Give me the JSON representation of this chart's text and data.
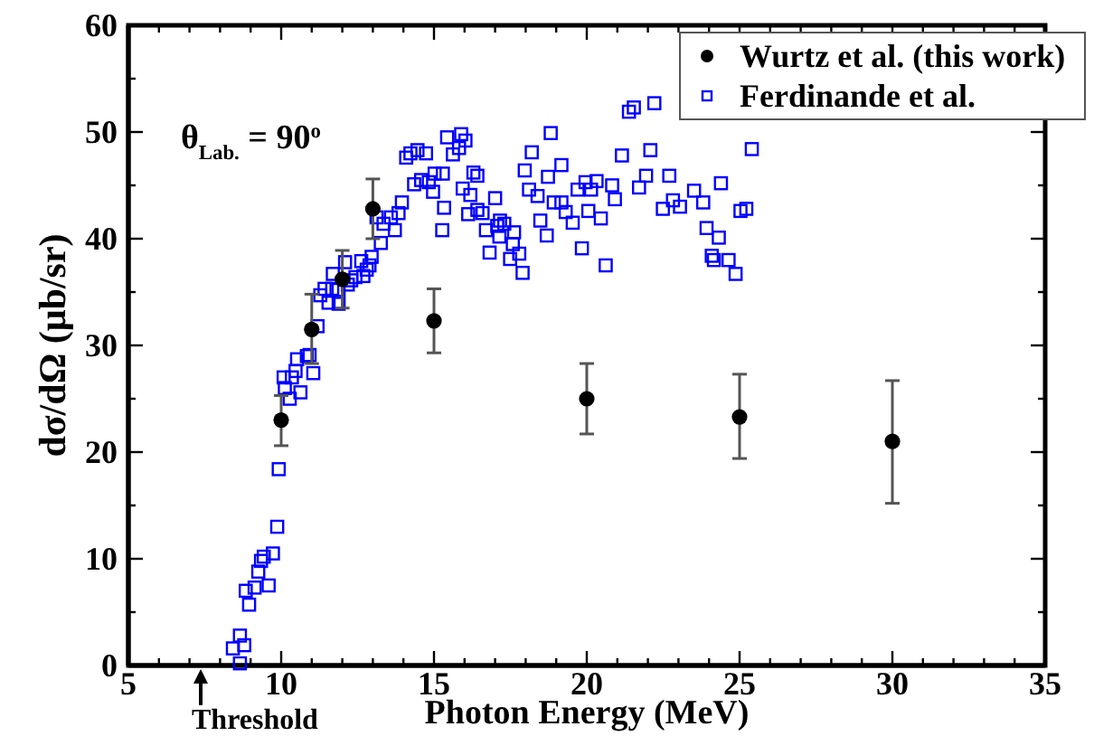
{
  "chart_data": {
    "type": "scatter",
    "xlabel": "Photon Energy (MeV)",
    "ylabel": "dσ/dΩ (μb/sr)",
    "xlim": [
      5,
      35
    ],
    "ylim": [
      0,
      60
    ],
    "xticks": [
      5,
      {
        "value": 6,
        "label": null
      },
      {
        "value": 7,
        "label": null
      },
      {
        "value": 8,
        "label": null
      },
      {
        "value": 9,
        "label": null
      },
      10,
      {
        "value": 11,
        "label": null
      },
      {
        "value": 12,
        "label": null
      },
      {
        "value": 13,
        "label": null
      },
      {
        "value": 14,
        "label": null
      },
      15,
      {
        "value": 16,
        "label": null
      },
      {
        "value": 17,
        "label": null
      },
      {
        "value": 18,
        "label": null
      },
      {
        "value": 19,
        "label": null
      },
      20,
      {
        "value": 21,
        "label": null
      },
      {
        "value": 22,
        "label": null
      },
      {
        "value": 23,
        "label": null
      },
      {
        "value": 24,
        "label": null
      },
      25,
      {
        "value": 26,
        "label": null
      },
      {
        "value": 27,
        "label": null
      },
      {
        "value": 28,
        "label": null
      },
      {
        "value": 29,
        "label": null
      },
      30,
      {
        "value": 31,
        "label": null
      },
      {
        "value": 32,
        "label": null
      },
      {
        "value": 33,
        "label": null
      },
      {
        "value": 34,
        "label": null
      },
      35
    ],
    "yticks": [
      0,
      {
        "value": 5,
        "label": null
      },
      10,
      {
        "value": 15,
        "label": null
      },
      20,
      {
        "value": 25,
        "label": null
      },
      30,
      {
        "value": 35,
        "label": null
      },
      40,
      {
        "value": 45,
        "label": null
      },
      50,
      {
        "value": 55,
        "label": null
      },
      60
    ],
    "grid": false,
    "legend": "top right",
    "annotations": [
      "θ$_{Lab.}$ = 90$^{o}$",
      "Threshold"
    ],
    "series": [
      {
        "name": "Wurtz et al. (this work)",
        "color": "#000000",
        "marker": "circle",
        "x": [
          10,
          11,
          12,
          13,
          15,
          20,
          25,
          30
        ],
        "values": [
          23,
          31.5,
          36.2,
          42.8,
          32.3,
          25,
          23.3,
          21
        ],
        "errors": [
          [
            20.6,
            25.3
          ],
          [
            28.3,
            34.8
          ],
          [
            33.5,
            38.9
          ],
          [
            40,
            45.6
          ],
          [
            29.3,
            35.3
          ],
          [
            21.7,
            28.3
          ],
          [
            19.4,
            27.3
          ],
          [
            15.2,
            26.7
          ]
        ]
      },
      {
        "name": "Ferdinande et al.",
        "color": "#0000ff",
        "marker": "square",
        "x": [
          8.42,
          8.65,
          8.65,
          8.79,
          8.84,
          8.95,
          9.13,
          9.25,
          9.34,
          9.43,
          9.59,
          9.73,
          9.87,
          9.92,
          10.08,
          10.12,
          10.28,
          10.35,
          10.47,
          10.52,
          10.63,
          10.84,
          10.93,
          11.05,
          11.19,
          11.28,
          11.42,
          11.55,
          11.67,
          11.69,
          11.88,
          11.88,
          12.09,
          12.18,
          12.29,
          12.43,
          12.62,
          12.69,
          12.8,
          12.89,
          12.96,
          13.12,
          13.26,
          13.35,
          13.59,
          13.72,
          13.84,
          13.95,
          14.09,
          14.23,
          14.35,
          14.46,
          14.58,
          14.74,
          14.83,
          14.97,
          15.02,
          15.27,
          15.29,
          15.33,
          15.43,
          15.62,
          15.82,
          15.89,
          16.03,
          15.94,
          16.12,
          16.19,
          16.29,
          16.42,
          16.42,
          16.59,
          16.7,
          16.82,
          17,
          17.07,
          17.16,
          17.14,
          17.3,
          17.49,
          17.58,
          17.62,
          17.79,
          17.9,
          17.97,
          18.11,
          18.2,
          18.39,
          18.48,
          18.69,
          18.73,
          18.82,
          18.92,
          19.17,
          19.17,
          19.31,
          19.54,
          19.7,
          19.84,
          19.96,
          20.05,
          20.14,
          20.32,
          20.46,
          20.62,
          20.83,
          20.92,
          21.15,
          21.38,
          21.54,
          21.71,
          21.94,
          22.08,
          22.21,
          22.49,
          22.7,
          22.82,
          23.05,
          23.51,
          23.81,
          23.92,
          24.09,
          24.16,
          24.32,
          24.39,
          24.64,
          24.87,
          25.03,
          25.22,
          25.4
        ],
        "values": [
          1.6,
          2.8,
          0.2,
          1.9,
          7,
          5.7,
          7.3,
          8.8,
          9.8,
          10.2,
          7.5,
          10.5,
          13,
          18.4,
          27,
          26,
          25,
          27,
          27.6,
          28.7,
          25.6,
          29,
          29.1,
          27.4,
          31.8,
          34.7,
          35.3,
          34,
          35.3,
          36.7,
          35.2,
          33.9,
          37.8,
          35.7,
          36.1,
          36.4,
          37.9,
          36.5,
          37.1,
          37.5,
          38.3,
          42,
          39.6,
          41.4,
          42,
          40.8,
          42.4,
          43.4,
          47.6,
          48,
          45.1,
          48.3,
          45.5,
          48,
          45.3,
          44.4,
          46.1,
          40.8,
          46.1,
          42.9,
          49.5,
          47.9,
          48.5,
          49.8,
          49.2,
          44.7,
          42.3,
          44.1,
          46.2,
          45.9,
          42.7,
          42.4,
          40.8,
          38.7,
          43.8,
          41.2,
          41.7,
          40.2,
          41.4,
          38.1,
          39.5,
          40.6,
          38.6,
          36.8,
          46.4,
          44.6,
          48.1,
          44,
          41.7,
          40.3,
          45.8,
          49.9,
          43.4,
          43.4,
          46.9,
          42.5,
          41.5,
          44.6,
          39.1,
          45.3,
          42.6,
          44.6,
          45.4,
          41.9,
          37.5,
          45,
          43.7,
          47.8,
          51.9,
          52.3,
          44.8,
          45.9,
          48.3,
          52.7,
          42.8,
          45.9,
          43.6,
          43,
          44.5,
          43.4,
          41,
          38.4,
          38,
          40.1,
          45.2,
          38,
          36.7,
          42.6,
          42.8,
          48.4
        ]
      }
    ]
  }
}
